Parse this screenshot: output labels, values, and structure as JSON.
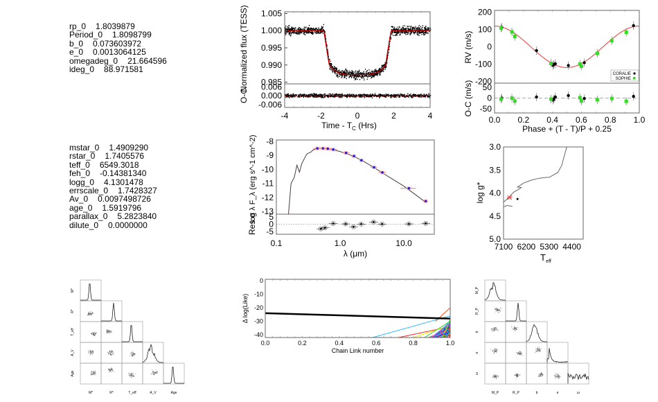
{
  "planet_params": [
    {
      "name": "rp_0",
      "value": "1.8039879"
    },
    {
      "name": "Period_0",
      "value": "1.8098799"
    },
    {
      "name": "b_0",
      "value": "0.073603972"
    },
    {
      "name": "e_0",
      "value": "0.0013064125"
    },
    {
      "name": "omegadeg_0",
      "value": "21.664596"
    },
    {
      "name": "ideg_0",
      "value": "88.971581"
    }
  ],
  "star_params": [
    {
      "name": "mstar_0",
      "value": "1.4909290"
    },
    {
      "name": "rstar_0",
      "value": "1.7405576"
    },
    {
      "name": "teff_0",
      "value": "6549.3018"
    },
    {
      "name": "feh_0",
      "value": "-0.14381340"
    },
    {
      "name": "logg_0",
      "value": "4.1301478"
    },
    {
      "name": "errscale_0",
      "value": "1.7428327"
    },
    {
      "name": "Av_0",
      "value": "0.0097498726"
    },
    {
      "name": "age_0",
      "value": "1.5919796"
    },
    {
      "name": "parallax_0",
      "value": "5.2823840"
    },
    {
      "name": "dilute_0",
      "value": "0.0000000"
    }
  ],
  "chart_data": [
    {
      "id": "transit",
      "type": "scatter",
      "ylabel": "Normalized flux (TESS)",
      "ylabel_resid": "O-C",
      "xlabel": "Time - T",
      "xlabel_sub": "C",
      "xlabel_tail": " (Hrs)",
      "xlim": [
        -4,
        4
      ],
      "ylim": [
        0.9845,
        1.0055
      ],
      "ylim_resid": [
        -0.008,
        0.008
      ],
      "xticks": [
        "-4",
        "-2",
        "0",
        "2",
        "4"
      ],
      "yticks": [
        "1.005",
        "1.000",
        "0.995",
        "0.990",
        "0.985"
      ],
      "yticks_resid": [
        "0.006",
        "0.000",
        "-0.006"
      ],
      "model": {
        "baseline": 1.0,
        "depth": 0.0128,
        "t_ingress_start": 1.85,
        "t_ingress_end": 1.55
      },
      "colors": {
        "data": "#000000",
        "model": "#cc0000"
      }
    },
    {
      "id": "rv",
      "type": "scatter",
      "ylabel": "RV (m/s)",
      "ylabel_resid": "O-C (m/s)",
      "xlabel": "Phase + (T_P - T_C)/P + 0.25",
      "xlim": [
        0,
        1
      ],
      "ylim": [
        -210,
        210
      ],
      "ylim_resid": [
        -70,
        70
      ],
      "xticks": [
        "0.0",
        "0.2",
        "0.4",
        "0.6",
        "0.8",
        "1.0"
      ],
      "yticks": [
        "200",
        "100",
        "0",
        "-100",
        "-200"
      ],
      "yticks_resid": [
        "50",
        "0",
        "-50"
      ],
      "model": {
        "amplitude": 120
      },
      "legend": [
        "CORALIE",
        "SOPHIE"
      ],
      "legend_position": "bottom-right",
      "series": [
        {
          "name": "CORALIE",
          "color": "#000000",
          "x": [
            0.05,
            0.29,
            0.405,
            0.41,
            0.42,
            0.51,
            0.62,
            0.96
          ],
          "y": [
            112,
            -22,
            -108,
            -102,
            -98,
            -108,
            -92,
            122
          ],
          "resid": [
            0,
            5,
            -10,
            -5,
            5,
            12,
            -2,
            8
          ]
        },
        {
          "name": "SOPHIE",
          "color": "#33dd22",
          "x": [
            0.045,
            0.12,
            0.14,
            0.39,
            0.59,
            0.6,
            0.71,
            0.81,
            0.91
          ],
          "y": [
            108,
            86,
            60,
            -96,
            -100,
            -112,
            -38,
            35,
            84
          ],
          "resid": [
            -5,
            0,
            -14,
            -5,
            2,
            -14,
            -8,
            -2,
            -15
          ]
        }
      ],
      "colors": {
        "model": "#ee4444"
      }
    },
    {
      "id": "sed",
      "type": "line",
      "ylabel": "log λ F_λ (erg s^-1 cm^-2)",
      "ylabel_resid": "Res σ",
      "xlabel": "λ (μm)",
      "xscale": "log",
      "xlim": [
        0.1,
        30
      ],
      "ylim": [
        -13.2,
        -7.9
      ],
      "ylim_resid": [
        -7,
        7
      ],
      "xticks": [
        "0.1",
        "1.0",
        "10.0"
      ],
      "yticks": [
        "-8",
        "-9",
        "-10",
        "-11",
        "-12",
        "-13"
      ],
      "yticks_resid": [
        "5",
        "0",
        "-5"
      ],
      "points": {
        "x": [
          0.44,
          0.54,
          0.64,
          0.78,
          1.24,
          1.65,
          2.16,
          3.4,
          4.6,
          12.0,
          22.0
        ],
        "y": [
          -8.5,
          -8.5,
          -8.52,
          -8.58,
          -8.82,
          -9.05,
          -9.35,
          -9.85,
          -10.22,
          -11.35,
          -12.27
        ],
        "xerr_lo": [
          0.38,
          0.47,
          0.55,
          0.68,
          1.1,
          1.5,
          2.0,
          3.0,
          4.0,
          8.8,
          20.0
        ],
        "xerr_hi": [
          0.5,
          0.6,
          0.74,
          0.9,
          1.4,
          1.8,
          2.3,
          3.8,
          5.2,
          15.5,
          24.0
        ],
        "resid": [
          -3.2,
          -2.5,
          0.5,
          0.2,
          -1.8,
          0.1,
          1.5,
          0.1,
          0.2,
          0.6,
          0.6
        ],
        "resid_x": [
          0.5,
          0.58,
          0.75,
          1.22,
          1.6,
          2.14,
          3.35,
          4.5,
          12.0,
          22.0,
          22.0
        ]
      },
      "colors": {
        "model": "#4a3a3a",
        "points": "#2222dd",
        "errbars": "#ff7777"
      }
    },
    {
      "id": "hr",
      "type": "line",
      "ylabel": "log g*",
      "xlabel": "T_eff",
      "xlim": [
        7100,
        3950
      ],
      "ylim": [
        5.0,
        3.0
      ],
      "xticks": [
        "7100",
        "6200",
        "5300",
        "4400"
      ],
      "yticks": [
        "3.0",
        "3.5",
        "4.0",
        "4.5",
        "5.0"
      ],
      "track": {
        "teff": [
          7100,
          6900,
          6700,
          6500,
          6400,
          6550,
          6300,
          6000,
          5700,
          5400,
          5300,
          5200,
          4950,
          4800,
          4600
        ],
        "logg": [
          4.2,
          4.1,
          3.98,
          3.92,
          3.88,
          3.87,
          3.78,
          3.72,
          3.68,
          3.66,
          3.66,
          3.63,
          3.55,
          3.4,
          3.0
        ]
      },
      "zams": {
        "teff": [
          7100,
          6950,
          6750
        ],
        "logg": [
          4.3,
          4.27,
          4.29
        ]
      },
      "star": {
        "teff": 6860,
        "logg": 4.1,
        "color": "#ff4444"
      },
      "model_point": {
        "teff": 6549,
        "logg": 4.13
      }
    },
    {
      "id": "chain",
      "type": "line",
      "ylabel": "Δ log(Like)",
      "xlabel": "Chain Link number",
      "xlim": [
        0,
        1
      ],
      "ylim": [
        -42,
        1
      ],
      "xticks": [
        "0.0",
        "0.2",
        "0.4",
        "0.6",
        "0.8",
        "1.0"
      ],
      "yticks": [
        "0",
        "-10",
        "-20",
        "-30",
        "-40"
      ],
      "best": {
        "x": [
          0,
          1
        ],
        "y": [
          -24,
          -28
        ]
      },
      "chains": [
        {
          "color": "#33bbff",
          "x": [
            0.58,
            1.0
          ],
          "y": [
            -42,
            -26
          ]
        },
        {
          "color": "#ff2222",
          "x": [
            0.72,
            1.0
          ],
          "y": [
            -42,
            -34
          ]
        },
        {
          "color": "#ff4400",
          "x": [
            0.92,
            1.0
          ],
          "y": [
            -30,
            -20
          ]
        },
        {
          "color": "#eeee00",
          "x": [
            0.8,
            1.0
          ],
          "y": [
            -42,
            -33
          ]
        },
        {
          "color": "#22cc22",
          "x": [
            0.86,
            1.0
          ],
          "y": [
            -42,
            -30
          ]
        },
        {
          "color": "#00aa66",
          "x": [
            0.9,
            1.0
          ],
          "y": [
            -42,
            -32
          ]
        },
        {
          "color": "#0033ff",
          "x": [
            0.94,
            1.0
          ],
          "y": [
            -42,
            -29
          ]
        },
        {
          "color": "#ff22ff",
          "x": [
            0.93,
            1.0
          ],
          "y": [
            -42,
            -36
          ]
        },
        {
          "color": "#00cccc",
          "x": [
            0.95,
            1.0
          ],
          "y": [
            -42,
            -31
          ]
        },
        {
          "color": "#8800ff",
          "x": [
            0.96,
            1.0
          ],
          "y": [
            -42,
            -35
          ]
        }
      ]
    },
    {
      "id": "corner_star",
      "type": "scatter",
      "labels": [
        "M*",
        "R*",
        "T_eff",
        "A_V",
        "Age"
      ]
    },
    {
      "id": "corner_planet",
      "type": "scatter",
      "labels": [
        "M_P",
        "R_P",
        "b",
        "e",
        "ω"
      ]
    }
  ]
}
